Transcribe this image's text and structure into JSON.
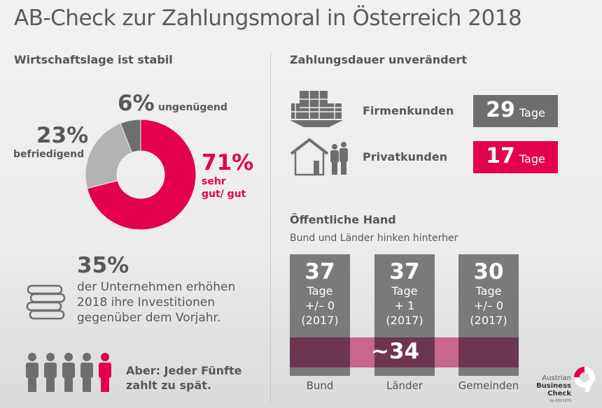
{
  "title": "AB-Check zur Zahlungsmoral in Österreich 2018",
  "left": {
    "heading": "Wirtschaftslage ist stabil",
    "investment": {
      "value": "35%",
      "text": [
        "der Unternehmen erhöhen",
        "2018 ihre Investitionen",
        "gegenüber dem Vorjahr."
      ]
    },
    "late": {
      "text": [
        "Aber: Jeder Fünfte",
        "zahlt zu spät."
      ],
      "people_total": 5,
      "people_highlighted": 1
    }
  },
  "right": {
    "heading": "Zahlungsdauer unverändert",
    "customers": [
      {
        "label": "Firmenkunden",
        "value": "29",
        "unit": "Tage",
        "color": "#6d6e70",
        "icon": "office-building-icon"
      },
      {
        "label": "Privatkunden",
        "value": "17",
        "unit": "Tage",
        "color": "#e2004f",
        "icon": "house-family-icon"
      }
    ],
    "public": {
      "heading": "Öffentliche Hand",
      "subheading": "Bund und Länder hinken hinterher"
    }
  },
  "logo": {
    "line1": "Austrian",
    "line2": "Business",
    "line3": "Check",
    "line4": "by KSV1870"
  },
  "colors": {
    "accent": "#e2004f",
    "dark_gray": "#6d6e70",
    "light_gray": "#b3b3b3",
    "band": "#6e3550",
    "band_light": "#c9668c"
  },
  "chart_data": [
    {
      "type": "pie",
      "variant": "donut",
      "title": "Wirtschaftslage ist stabil",
      "slices": [
        {
          "label": "sehr gut/ gut",
          "value": 71,
          "display": "71%",
          "color": "#e2004f"
        },
        {
          "label": "befriedigend",
          "value": 23,
          "display": "23%",
          "color": "#b3b3b3"
        },
        {
          "label": "ungenügend",
          "value": 6,
          "display": "6%",
          "color": "#6d6e70"
        }
      ]
    },
    {
      "type": "bar",
      "title": "Öffentliche Hand",
      "categories": [
        "Bund",
        "Länder",
        "Gemeinden"
      ],
      "values": [
        37,
        37,
        30
      ],
      "unit": "Tage",
      "changes": [
        "+/– 0",
        "+ 1",
        "+/– 0"
      ],
      "change_ref": "(2017)",
      "average": {
        "label": "~34",
        "value": 34
      }
    }
  ]
}
